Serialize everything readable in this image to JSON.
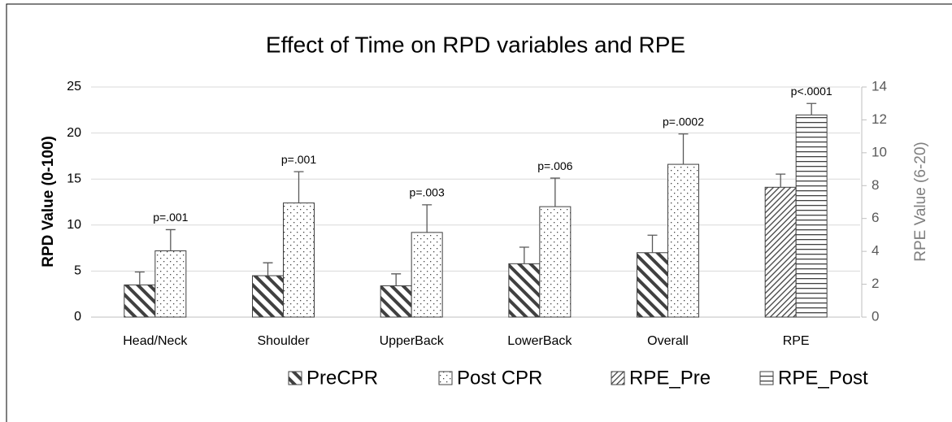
{
  "chart_data": {
    "type": "bar",
    "title": "Effect of Time on RPD variables and RPE",
    "y_label": "RPD Value (0-100)",
    "y2_label": "RPE Value (6-20)",
    "categories": [
      "Head/Neck",
      "Shoulder",
      "UpperBack",
      "LowerBack",
      "Overall",
      "RPE"
    ],
    "series": [
      {
        "name": "PreCPR",
        "color": "#404040",
        "pattern": "backslash",
        "values": [
          3.5,
          4.5,
          3.4,
          5.8,
          7.0,
          null
        ],
        "errors": [
          1.4,
          1.4,
          1.3,
          1.8,
          1.9,
          null
        ]
      },
      {
        "name": "Post CPR",
        "color": "#404040",
        "pattern": "dots",
        "values": [
          7.2,
          12.4,
          9.2,
          12.0,
          16.6,
          null
        ],
        "errors": [
          2.3,
          3.4,
          3.0,
          3.1,
          3.3,
          null
        ]
      },
      {
        "name": "RPE_Pre",
        "color": "#404040",
        "pattern": "slash",
        "axis": "y2",
        "values": [
          null,
          null,
          null,
          null,
          null,
          7.9
        ],
        "errors": [
          null,
          null,
          null,
          null,
          null,
          0.8
        ]
      },
      {
        "name": "RPE_Post",
        "color": "#404040",
        "pattern": "hlines",
        "axis": "y2",
        "values": [
          null,
          null,
          null,
          null,
          null,
          12.3
        ],
        "errors": [
          null,
          null,
          null,
          null,
          null,
          0.7
        ]
      }
    ],
    "annotations": [
      "p=.001",
      "p=.001",
      "p=.003",
      "p=.006",
      "p=.0002",
      "p<.0001"
    ],
    "ylim": [
      0,
      25
    ],
    "yticks": [
      0,
      5,
      10,
      15,
      20,
      25
    ],
    "y2lim": [
      0,
      14
    ],
    "y2ticks": [
      0,
      2,
      4,
      6,
      8,
      10,
      12,
      14
    ],
    "grid": true,
    "legend": "bottom"
  }
}
